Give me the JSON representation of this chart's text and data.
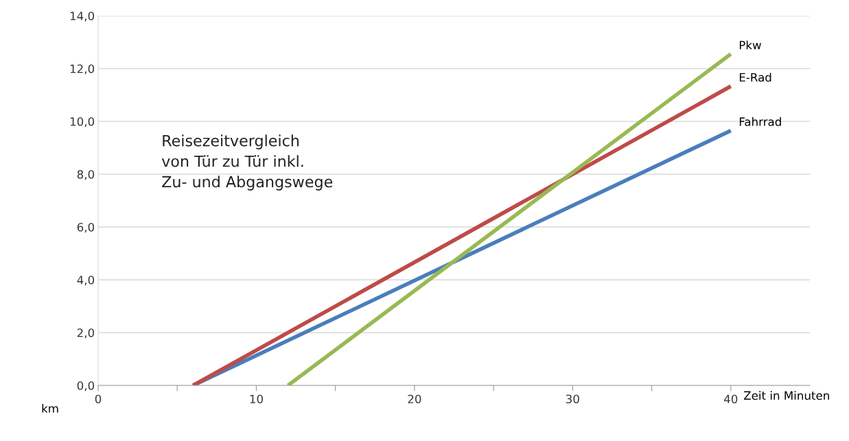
{
  "chart_data": {
    "type": "line",
    "xlabel": "Zeit in Minuten",
    "ylabel": "km",
    "annotations": [
      "Reisezeitvergleich\nvon Tür zu Tür inkl.\nZu- und Abgangswege"
    ],
    "series": [
      {
        "name": "Fahrrad",
        "color": "#4a7ebb",
        "x": [
          6,
          40
        ],
        "values": [
          0,
          9.65
        ]
      },
      {
        "name": "E-Rad",
        "color": "#be4b48",
        "x": [
          6,
          40
        ],
        "values": [
          0,
          11.33
        ]
      },
      {
        "name": "Pkw",
        "color": "#98b954",
        "x": [
          12,
          40
        ],
        "values": [
          0,
          12.55
        ]
      }
    ],
    "xlim": [
      0,
      45
    ],
    "ylim": [
      0,
      14
    ],
    "xticks": [
      0,
      {
        "value": 5,
        "label": null
      },
      10,
      {
        "value": 15,
        "label": null
      },
      20,
      {
        "value": 25,
        "label": null
      },
      30,
      {
        "value": 35,
        "label": null
      },
      40
    ],
    "yticks": [
      {
        "value": 0,
        "label": "0,0"
      },
      {
        "value": 2,
        "label": "2,0"
      },
      {
        "value": 4,
        "label": "4,0"
      },
      {
        "value": 6,
        "label": "6,0"
      },
      {
        "value": 8,
        "label": "8,0"
      },
      {
        "value": 10,
        "label": "10,0"
      },
      {
        "value": 12,
        "label": "12,0"
      },
      {
        "value": 14,
        "label": "14,0"
      }
    ],
    "grid": "y",
    "legend": false,
    "marker": "none",
    "line_style": "solid"
  }
}
